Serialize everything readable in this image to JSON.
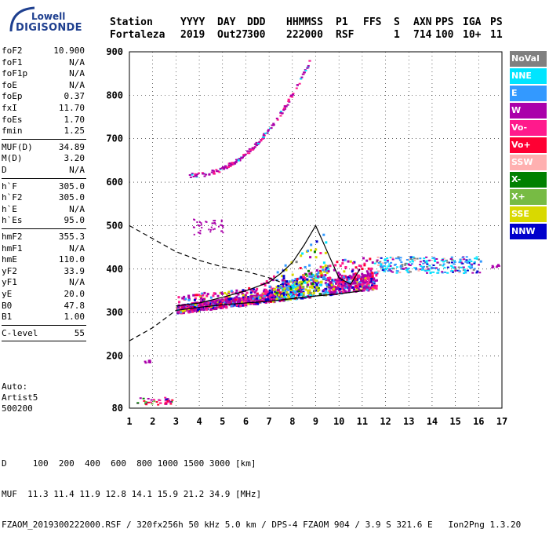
{
  "logo": {
    "line1": "Lowell",
    "line2": "DIGISONDE"
  },
  "header": {
    "row1": [
      "Station",
      "YYYY",
      "DAY",
      "DDD",
      "HHMMSS",
      "P1",
      "FFS",
      "S",
      "AXN",
      "PPS",
      "IGA",
      "PS"
    ],
    "row2": [
      "Fortaleza",
      "2019",
      "Out27",
      "300",
      "222000",
      "RSF",
      "",
      "1",
      "714",
      "100",
      "10+",
      "11"
    ]
  },
  "params": [
    {
      "label": "foF2",
      "value": "10.900"
    },
    {
      "label": "foF1",
      "value": "N/A"
    },
    {
      "label": "foF1p",
      "value": "N/A"
    },
    {
      "label": "foE",
      "value": "N/A"
    },
    {
      "label": "foEp",
      "value": "0.37"
    },
    {
      "label": "fxI",
      "value": "11.70"
    },
    {
      "label": "foEs",
      "value": "1.70"
    },
    {
      "label": "fmin",
      "value": "1.25"
    },
    {
      "label": "MUF(D)",
      "value": "34.89"
    },
    {
      "label": "M(D)",
      "value": "3.20"
    },
    {
      "label": "D",
      "value": "N/A"
    },
    {
      "label": "h`F",
      "value": "305.0"
    },
    {
      "label": "h`F2",
      "value": "305.0"
    },
    {
      "label": "h`E",
      "value": "N/A"
    },
    {
      "label": "h`Es",
      "value": "95.0"
    },
    {
      "label": "hmF2",
      "value": "355.3"
    },
    {
      "label": "hmF1",
      "value": "N/A"
    },
    {
      "label": "hmE",
      "value": "110.0"
    },
    {
      "label": "yF2",
      "value": "33.9"
    },
    {
      "label": "yF1",
      "value": "N/A"
    },
    {
      "label": "yE",
      "value": "20.0"
    },
    {
      "label": "B0",
      "value": "47.8"
    },
    {
      "label": "B1",
      "value": "1.00"
    },
    {
      "label": "C-level",
      "value": "55"
    }
  ],
  "auto": {
    "line1": "Auto:",
    "line2": "Artist5",
    "line3": "500200"
  },
  "legend": [
    {
      "label": "NoVal",
      "color": "#808080"
    },
    {
      "label": "NNE",
      "color": "#00e5ff"
    },
    {
      "label": "E",
      "color": "#3399ff"
    },
    {
      "label": "W",
      "color": "#aa00aa"
    },
    {
      "label": "Vo-",
      "color": "#ff1a8c"
    },
    {
      "label": "Vo+",
      "color": "#ff0033"
    },
    {
      "label": "SSW",
      "color": "#ffb0b0"
    },
    {
      "label": "X-",
      "color": "#008000"
    },
    {
      "label": "X+",
      "color": "#77bb44"
    },
    {
      "label": "SSE",
      "color": "#d9d900"
    },
    {
      "label": "NNW",
      "color": "#0000cc"
    }
  ],
  "footer": {
    "line1": "D     100  200  400  600  800 1000 1500 3000 [km]",
    "line2": "MUF  11.3 11.4 11.9 12.8 14.1 15.9 21.2 34.9 [MHz]",
    "line3": "FZAOM_2019300222000.RSF / 320fx256h 50 kHz 5.0 km / DPS-4 FZAOM 904 / 3.9 S 321.6 E   Ion2Png 1.3.20"
  },
  "chart_data": {
    "type": "scatter",
    "xlim": [
      1,
      17
    ],
    "ylim": [
      80,
      900
    ],
    "x_ticks": [
      1,
      2,
      3,
      4,
      5,
      6,
      7,
      8,
      9,
      10,
      11,
      12,
      13,
      14,
      15,
      16,
      17
    ],
    "y_ticks": [
      80,
      200,
      300,
      400,
      500,
      600,
      700,
      800,
      900
    ],
    "xlabel": "",
    "ylabel": "",
    "grid": true,
    "es_trace": {
      "x": [
        1.3,
        2.8
      ],
      "y": [
        95,
        95
      ]
    },
    "spread_f2": {
      "x": [
        3.0,
        11.5
      ],
      "y": [
        305,
        420
      ]
    },
    "f2_trace_secondary": {
      "x": [
        3.5,
        8.8
      ],
      "y": [
        610,
        880
      ]
    },
    "trace_ordinary": {
      "x": [
        3.0,
        4.0,
        5.0,
        6.0,
        7.0,
        7.5,
        8.0,
        8.5,
        9.0,
        9.5,
        10.0,
        10.5,
        10.9
      ],
      "y": [
        315,
        322,
        335,
        350,
        370,
        390,
        415,
        455,
        500,
        440,
        380,
        365,
        400
      ]
    },
    "profile_lower": {
      "x": [
        3.0,
        4.0,
        5.0,
        6.0,
        7.0,
        8.0,
        9.0,
        10.0,
        11.0
      ],
      "y": [
        305,
        312,
        318,
        322,
        326,
        332,
        338,
        343,
        350
      ]
    },
    "profile_dashed": {
      "x": [
        1.0,
        2.0,
        3.0,
        4.0,
        5.0,
        6.0,
        7.0,
        7.5
      ],
      "y": [
        500,
        470,
        440,
        420,
        405,
        395,
        380,
        370
      ]
    },
    "lower_dashed": {
      "x": [
        1.0,
        2.0,
        3.0
      ],
      "y": [
        235,
        265,
        305
      ]
    }
  }
}
